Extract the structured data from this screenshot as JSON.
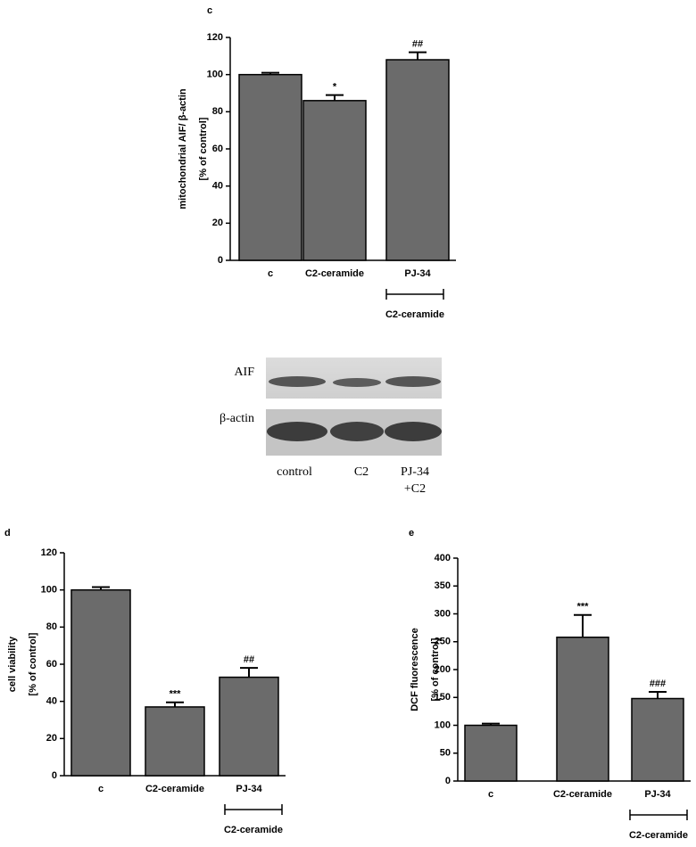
{
  "chart_data": [
    {
      "type": "bar",
      "panel": "c",
      "ylabel": [
        "mitochondrial AIF/ β-actin",
        "[% of control]"
      ],
      "categories": [
        "c",
        "C2-ceramide",
        "PJ-34"
      ],
      "values": [
        100,
        86,
        108
      ],
      "errors": [
        1,
        3,
        4
      ],
      "annotations": [
        null,
        "*",
        "##"
      ],
      "group_label": "C2-ceramide",
      "color": "#6b6b6b",
      "ylim": [
        0,
        120
      ],
      "yticks": [
        0,
        20,
        40,
        60,
        80,
        100,
        120
      ]
    },
    {
      "type": "bar",
      "panel": "d",
      "ylabel": [
        "cell viability",
        "[% of control]"
      ],
      "categories": [
        "c",
        "C2-ceramide",
        "PJ-34"
      ],
      "values": [
        100,
        37,
        53
      ],
      "errors": [
        1.5,
        2.5,
        5
      ],
      "annotations": [
        null,
        "***",
        "##"
      ],
      "group_label": "C2-ceramide",
      "color": "#6b6b6b",
      "ylim": [
        0,
        120
      ],
      "yticks": [
        0,
        20,
        40,
        60,
        80,
        100,
        120
      ]
    },
    {
      "type": "bar",
      "panel": "e",
      "ylabel": [
        "DCF fluorescence",
        "[% of control]"
      ],
      "categories": [
        "c",
        "C2-ceramide",
        "PJ-34"
      ],
      "values": [
        100,
        258,
        148
      ],
      "errors": [
        3,
        40,
        12
      ],
      "annotations": [
        null,
        "***",
        "###"
      ],
      "group_label": "C2-ceramide",
      "color": "#6b6b6b",
      "ylim": [
        0,
        400
      ],
      "yticks": [
        0,
        50,
        100,
        150,
        200,
        250,
        300,
        350,
        400
      ]
    }
  ],
  "blot": {
    "rows": [
      "AIF",
      "β-actin"
    ],
    "lanes": [
      [
        "control"
      ],
      [
        "C2"
      ],
      [
        "PJ-34",
        "+C2"
      ]
    ]
  }
}
